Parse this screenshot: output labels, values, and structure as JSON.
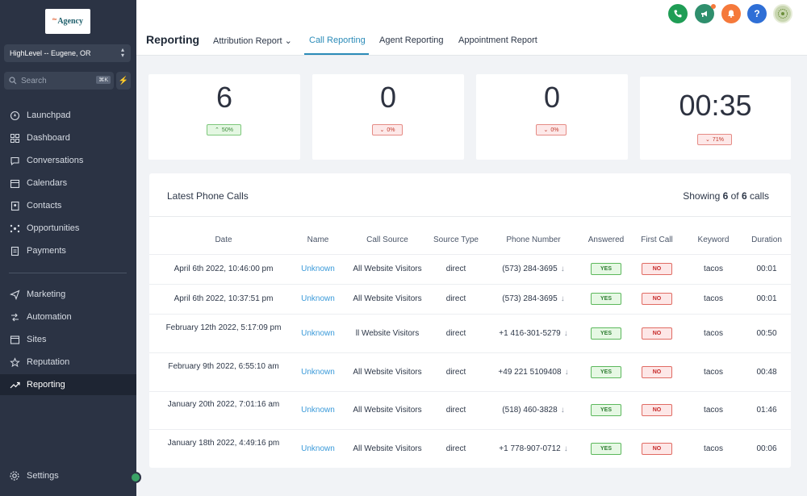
{
  "brand": {
    "logo_small": "the",
    "logo_text": "Agency"
  },
  "location": {
    "name": "HighLevel -- Eugene, OR"
  },
  "search": {
    "placeholder": "Search",
    "shortcut": "⌘K"
  },
  "sidebar": {
    "items": [
      {
        "label": "Launchpad",
        "icon": "rocket-icon"
      },
      {
        "label": "Dashboard",
        "icon": "grid-icon"
      },
      {
        "label": "Conversations",
        "icon": "chat-icon"
      },
      {
        "label": "Calendars",
        "icon": "calendar-icon"
      },
      {
        "label": "Contacts",
        "icon": "contacts-icon"
      },
      {
        "label": "Opportunities",
        "icon": "network-icon"
      },
      {
        "label": "Payments",
        "icon": "receipt-icon"
      },
      {
        "label": "Marketing",
        "icon": "send-icon"
      },
      {
        "label": "Automation",
        "icon": "automation-icon"
      },
      {
        "label": "Sites",
        "icon": "sites-icon"
      },
      {
        "label": "Reputation",
        "icon": "star-icon"
      },
      {
        "label": "Reporting",
        "icon": "trend-icon",
        "active": true
      }
    ],
    "settings_label": "Settings"
  },
  "header": {
    "title": "Reporting",
    "tabs": [
      {
        "label": "Attribution Report ⌄"
      },
      {
        "label": "Call Reporting",
        "active": true
      },
      {
        "label": "Agent Reporting"
      },
      {
        "label": "Appointment Report"
      }
    ]
  },
  "colors": {
    "accent": "#2b8bb8",
    "sidebar": "#2b3344",
    "phone": "#1f9d55",
    "megaphone": "#2f8f6d",
    "bell": "#f5793b",
    "help": "#2f6fd6"
  },
  "stats": [
    {
      "value": "6",
      "change": "50%",
      "direction": "up"
    },
    {
      "value": "0",
      "change": "0%",
      "direction": "down"
    },
    {
      "value": "0",
      "change": "0%",
      "direction": "down"
    },
    {
      "value": "00:35",
      "change": "71%",
      "direction": "down"
    }
  ],
  "calls": {
    "title": "Latest Phone Calls",
    "showing_prefix": "Showing ",
    "showing_count": "6",
    "showing_of": " of ",
    "showing_total": "6",
    "showing_suffix": " calls",
    "columns": [
      "Date",
      "Name",
      "Call Source",
      "Source Type",
      "Phone Number",
      "Answered",
      "First Call",
      "Keyword",
      "Duration"
    ],
    "rows": [
      {
        "date": "April 6th 2022, 10:46:00 pm",
        "name": "Unknown",
        "source": "All Website Visitors",
        "type": "direct",
        "phone": "(573) 284-3695",
        "answered": "YES",
        "first": "NO",
        "keyword": "tacos",
        "duration": "00:01"
      },
      {
        "date": "April 6th 2022, 10:37:51 pm",
        "name": "Unknown",
        "source": "All Website Visitors",
        "type": "direct",
        "phone": "(573) 284-3695",
        "answered": "YES",
        "first": "NO",
        "keyword": "tacos",
        "duration": "00:01"
      },
      {
        "date": "February 12th 2022, 5:17:09 pm",
        "name": "Unknown",
        "source": "ll Website Visitors",
        "type": "direct",
        "phone": "+1 416-301-5279",
        "answered": "YES",
        "first": "NO",
        "keyword": "tacos",
        "duration": "00:50"
      },
      {
        "date": "February 9th 2022, 6:55:10 am",
        "name": "Unknown",
        "source": "All Website Visitors",
        "type": "direct",
        "phone": "+49 221 5109408",
        "answered": "YES",
        "first": "NO",
        "keyword": "tacos",
        "duration": "00:48"
      },
      {
        "date": "January 20th 2022, 7:01:16 am",
        "name": "Unknown",
        "source": "All Website Visitors",
        "type": "direct",
        "phone": "(518) 460-3828",
        "answered": "YES",
        "first": "NO",
        "keyword": "tacos",
        "duration": "01:46"
      },
      {
        "date": "January 18th 2022, 4:49:16 pm",
        "name": "Unknown",
        "source": "All Website Visitors",
        "type": "direct",
        "phone": "+1 778-907-0712",
        "answered": "YES",
        "first": "NO",
        "keyword": "tacos",
        "duration": "00:06"
      }
    ]
  }
}
